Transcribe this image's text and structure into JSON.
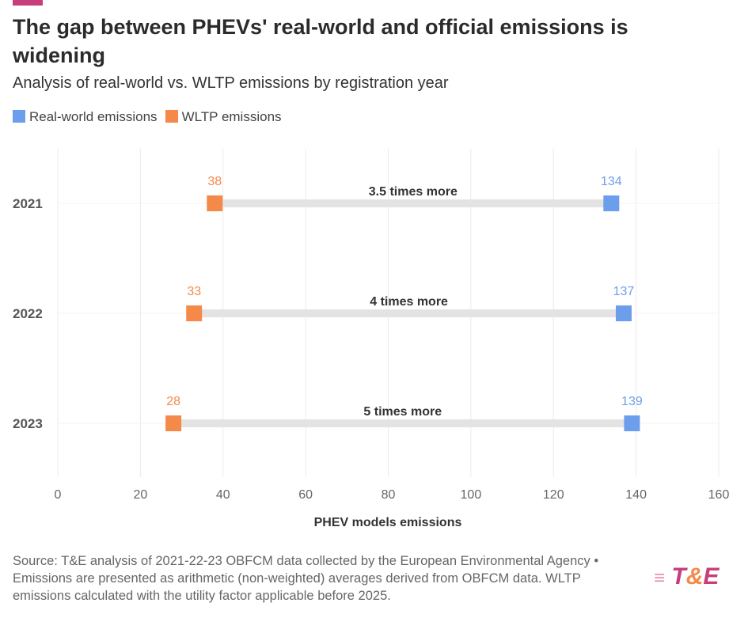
{
  "title": "The gap between PHEVs' real-world and official emissions is widening",
  "subtitle": "Analysis of real-world vs. WLTP emissions by registration year",
  "source": "Source: T&E analysis of 2021-22-23 OBFCM data collected by the European Environmental Agency • Emissions are presented as arithmetic (non-weighted) averages derived from OBFCM data. WLTP emissions calculated with the utility factor applicable before 2025.",
  "logo": {
    "left": "T",
    "amp": "&",
    "right": "E"
  },
  "chart_data": {
    "type": "dumbbell",
    "categories": [
      "2021",
      "2022",
      "2023"
    ],
    "series": [
      {
        "name": "Real-world emissions",
        "color": "#6d9eeb",
        "values": [
          134,
          137,
          139
        ]
      },
      {
        "name": "WLTP emissions",
        "color": "#f5894a",
        "values": [
          38,
          33,
          28
        ]
      }
    ],
    "annotations": [
      "3.5 times more",
      "4 times more",
      "5 times more"
    ],
    "xlabel": "PHEV models emissions",
    "xlim": [
      0,
      160
    ],
    "xticks": [
      0,
      20,
      40,
      60,
      80,
      100,
      120,
      140,
      160
    ],
    "grid": true,
    "legend": "top-left"
  }
}
